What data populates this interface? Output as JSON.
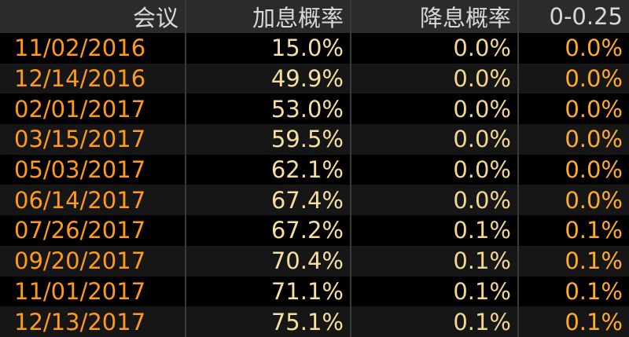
{
  "table": {
    "columns": [
      "会议",
      "加息概率",
      "降息概率",
      "0-0.25"
    ],
    "rows": [
      [
        "11/02/2016",
        "15.0%",
        "0.0%",
        "0.0%"
      ],
      [
        "12/14/2016",
        "49.9%",
        "0.0%",
        "0.0%"
      ],
      [
        "02/01/2017",
        "53.0%",
        "0.0%",
        "0.0%"
      ],
      [
        "03/15/2017",
        "59.5%",
        "0.0%",
        "0.0%"
      ],
      [
        "05/03/2017",
        "62.1%",
        "0.0%",
        "0.0%"
      ],
      [
        "06/14/2017",
        "67.4%",
        "0.0%",
        "0.0%"
      ],
      [
        "07/26/2017",
        "67.2%",
        "0.1%",
        "0.1%"
      ],
      [
        "09/20/2017",
        "70.4%",
        "0.1%",
        "0.1%"
      ],
      [
        "11/01/2017",
        "71.1%",
        "0.1%",
        "0.1%"
      ],
      [
        "12/13/2017",
        "75.1%",
        "0.1%",
        "0.1%"
      ]
    ]
  }
}
